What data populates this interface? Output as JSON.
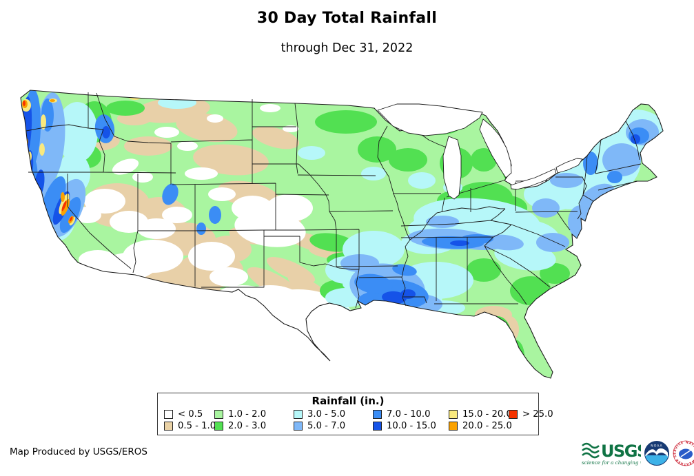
{
  "page": {
    "title": "30 Day Total Rainfall",
    "subtitle": "through Dec 31, 2022"
  },
  "legend": {
    "title": "Rainfall (in.)",
    "classes": [
      {
        "label": "< 0.5",
        "color": "#ffffff"
      },
      {
        "label": "0.5 - 1.0",
        "color": "#ead2a6"
      },
      {
        "label": "1.0 - 2.0",
        "color": "#a9f5a0"
      },
      {
        "label": "2.0 - 3.0",
        "color": "#52e052"
      },
      {
        "label": "3.0 - 5.0",
        "color": "#b6f7f9"
      },
      {
        "label": "5.0 - 7.0",
        "color": "#7fb8f8"
      },
      {
        "label": "7.0 - 10.0",
        "color": "#3b8df5"
      },
      {
        "label": "10.0 - 15.0",
        "color": "#1553e8"
      },
      {
        "label": "15.0 - 20.0",
        "color": "#f9e97e"
      },
      {
        "label": "20.0 - 25.0",
        "color": "#fba200"
      },
      {
        "label": "> 25.0",
        "color": "#f63300"
      }
    ]
  },
  "map": {
    "region": "Contiguous United States",
    "base_color": "#a9f5a0",
    "boundary_color": "#1a1a1a"
  },
  "footer": {
    "credit": "Map Produced by USGS/EROS"
  },
  "logos": {
    "usgs": {
      "name": "USGS",
      "tagline": "science for a changing world",
      "color": "#0f7344"
    },
    "noaa": {
      "name": "NOAA"
    },
    "nws": {
      "name": "NATIONAL WEATHER SERVICE"
    }
  }
}
